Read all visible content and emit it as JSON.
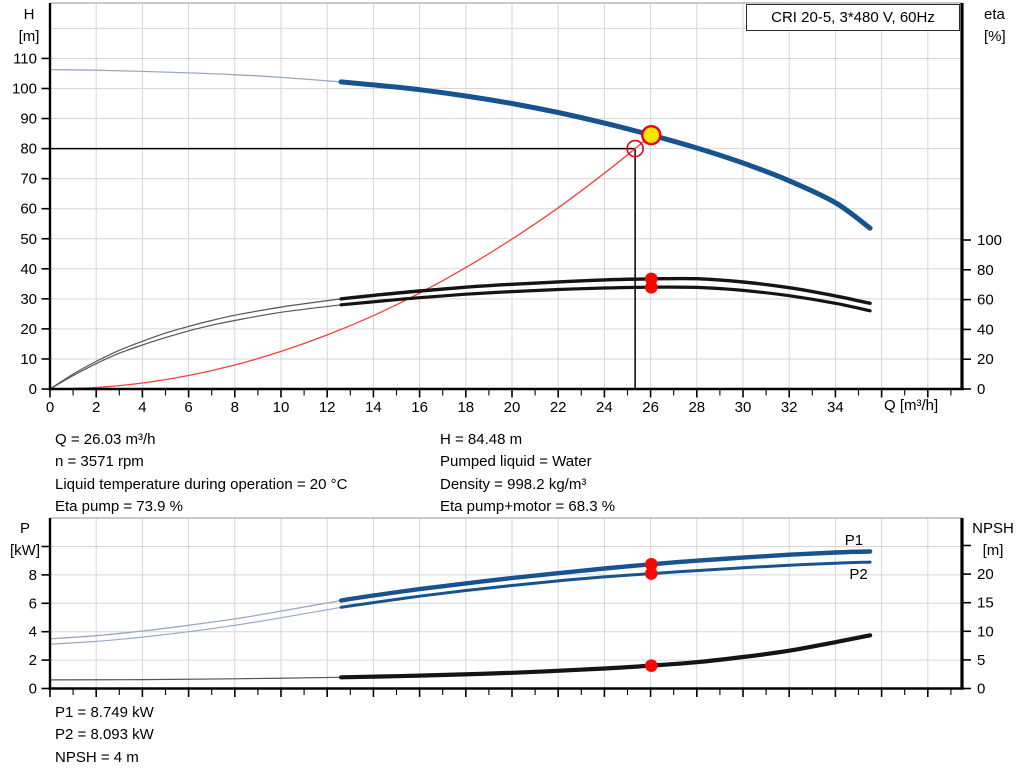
{
  "title_box": "CRI 20-5, 3*480 V, 60Hz",
  "colors": {
    "curve_blue": "#17538f",
    "curve_blue_thin": "#9aa9c2",
    "curve_black": "#141414",
    "curve_black_thin": "#555555",
    "curve_red": "#f0433d",
    "marker_red": "#f50800",
    "marker_yellow_fill": "#ffe600",
    "marker_yellow_stroke": "#e8001c",
    "grid": "#d6d6d6",
    "plot_border": "#ababab",
    "axis": "#000000"
  },
  "info_blocks": {
    "duty_left": [
      "Q = 26.03 m³/h",
      "n = 3571 rpm",
      "Liquid temperature during operation = 20 °C",
      "Eta pump = 73.9 %"
    ],
    "duty_right": [
      "H = 84.48 m",
      "Pumped liquid = Water",
      "Density = 998.2 kg/m³",
      "Eta pump+motor = 68.3 %"
    ],
    "power": [
      "P1 = 8.749 kW",
      "P2 = 8.093 kW",
      "NPSH = 4 m"
    ]
  },
  "chart_data": [
    {
      "type": "line",
      "x": {
        "label": "Q [m³/h]",
        "min": 0,
        "max": 39,
        "major_tick_step": 2,
        "tick_labels": [
          0,
          2,
          4,
          6,
          8,
          10,
          12,
          14,
          16,
          18,
          20,
          22,
          24,
          26,
          28,
          30,
          32,
          34
        ]
      },
      "y_left": {
        "title": [
          "H",
          "[m]"
        ],
        "min": 0,
        "max": 128,
        "ticks": [
          0,
          10,
          20,
          30,
          40,
          50,
          60,
          70,
          80,
          90,
          100,
          110
        ],
        "tick_labels": [
          0,
          10,
          20,
          30,
          40,
          50,
          60,
          70,
          80,
          90,
          100,
          110
        ]
      },
      "y_right": {
        "title": [
          "eta",
          "[%]"
        ],
        "min": 0,
        "max": 259,
        "ticks": [
          0,
          20,
          40,
          60,
          80,
          100
        ],
        "tick_labels": [
          0,
          20,
          40,
          60,
          80,
          100
        ]
      },
      "duty_lines": {
        "q": 25.33,
        "h": 80
      },
      "series": [
        {
          "name": "system-curve",
          "axis": "left",
          "thick_from": null,
          "points": [
            [
              0,
              0
            ],
            [
              2,
              0.5
            ],
            [
              4,
              2.0
            ],
            [
              6,
              4.5
            ],
            [
              8,
              8.0
            ],
            [
              10,
              12.5
            ],
            [
              12,
              18.0
            ],
            [
              14,
              24.4
            ],
            [
              16,
              31.9
            ],
            [
              18,
              40.4
            ],
            [
              20,
              49.9
            ],
            [
              22,
              60.3
            ],
            [
              24,
              71.8
            ],
            [
              25.33,
              80.0
            ],
            [
              26.03,
              84.48
            ]
          ]
        },
        {
          "name": "eta-pump",
          "axis": "right",
          "thick_from": 12.6,
          "points": [
            [
              0,
              0
            ],
            [
              1,
              10
            ],
            [
              2,
              18.5
            ],
            [
              3,
              26
            ],
            [
              4,
              32
            ],
            [
              5,
              37.5
            ],
            [
              6,
              42
            ],
            [
              7,
              46
            ],
            [
              8,
              49.5
            ],
            [
              10,
              55
            ],
            [
              12.6,
              60.5
            ],
            [
              14,
              62.8
            ],
            [
              16,
              65.8
            ],
            [
              18,
              68.3
            ],
            [
              20,
              70.3
            ],
            [
              22,
              71.9
            ],
            [
              24,
              73.2
            ],
            [
              26.03,
              73.9
            ],
            [
              28,
              74.0
            ],
            [
              30,
              71.8
            ],
            [
              32,
              68.0
            ],
            [
              34,
              62.5
            ],
            [
              35.5,
              57.5
            ]
          ]
        },
        {
          "name": "eta-pump-motor",
          "axis": "right",
          "thick_from": 12.6,
          "points": [
            [
              0,
              0
            ],
            [
              1,
              9
            ],
            [
              2,
              17
            ],
            [
              3,
              24
            ],
            [
              4,
              29.5
            ],
            [
              5,
              34.5
            ],
            [
              6,
              39
            ],
            [
              7,
              42.8
            ],
            [
              8,
              46
            ],
            [
              10,
              51.5
            ],
            [
              12.6,
              56.5
            ],
            [
              14,
              58.5
            ],
            [
              16,
              61.3
            ],
            [
              18,
              63.6
            ],
            [
              20,
              65.4
            ],
            [
              22,
              66.8
            ],
            [
              24,
              67.8
            ],
            [
              26.03,
              68.3
            ],
            [
              28,
              68.2
            ],
            [
              30,
              66.2
            ],
            [
              32,
              62.6
            ],
            [
              34,
              57.5
            ],
            [
              35.5,
              52.5
            ]
          ]
        },
        {
          "name": "head",
          "axis": "left",
          "thick_from": 12.6,
          "points": [
            [
              0,
              106.3
            ],
            [
              2,
              106.1
            ],
            [
              4,
              105.7
            ],
            [
              6,
              105.2
            ],
            [
              8,
              104.6
            ],
            [
              10,
              103.7
            ],
            [
              12.6,
              102.2
            ],
            [
              14,
              101.2
            ],
            [
              16,
              99.6
            ],
            [
              18,
              97.5
            ],
            [
              20,
              95.0
            ],
            [
              22,
              92.0
            ],
            [
              24,
              88.5
            ],
            [
              26.03,
              84.48
            ],
            [
              28,
              80.2
            ],
            [
              30,
              75.2
            ],
            [
              32,
              69.3
            ],
            [
              34,
              62.0
            ],
            [
              35.5,
              53.5
            ]
          ]
        }
      ],
      "markers": [
        {
          "type": "result-dot",
          "axis": "right",
          "q": 26.03,
          "v": 73.9
        },
        {
          "type": "result-dot",
          "axis": "right",
          "q": 26.03,
          "v": 68.3
        },
        {
          "type": "requested-duty-open",
          "axis": "left",
          "q": 25.33,
          "v": 80
        },
        {
          "type": "duty-point-yellow",
          "axis": "left",
          "q": 26.03,
          "v": 84.48
        }
      ],
      "series_labels": []
    },
    {
      "type": "line",
      "x": {
        "label": "",
        "min": 0,
        "max": 39,
        "major_tick_step": 2,
        "tick_labels": []
      },
      "y_left": {
        "title": [
          "P",
          "[kW]"
        ],
        "min": 0,
        "max": 12,
        "ticks": [
          0,
          2,
          4,
          6,
          8,
          10
        ],
        "tick_labels": [
          0,
          2,
          4,
          6,
          8
        ]
      },
      "y_right": {
        "title": [
          "NPSH",
          "[m]"
        ],
        "min": 0,
        "max": 29.8,
        "ticks": [
          0,
          5,
          10,
          15,
          20,
          25
        ],
        "tick_labels": [
          0,
          5,
          10,
          15,
          20
        ]
      },
      "series": [
        {
          "name": "p1",
          "axis": "left",
          "thick_from": 12.6,
          "points": [
            [
              0,
              3.5
            ],
            [
              2,
              3.72
            ],
            [
              4,
              4.05
            ],
            [
              6,
              4.45
            ],
            [
              8,
              4.9
            ],
            [
              10,
              5.45
            ],
            [
              12.6,
              6.2
            ],
            [
              14,
              6.55
            ],
            [
              16,
              7.0
            ],
            [
              18,
              7.4
            ],
            [
              20,
              7.78
            ],
            [
              22,
              8.12
            ],
            [
              24,
              8.45
            ],
            [
              26.03,
              8.749
            ],
            [
              28,
              9.0
            ],
            [
              30,
              9.22
            ],
            [
              32,
              9.42
            ],
            [
              34,
              9.58
            ],
            [
              35.5,
              9.65
            ]
          ]
        },
        {
          "name": "p2",
          "axis": "left",
          "thick_from": 12.6,
          "points": [
            [
              0,
              3.12
            ],
            [
              2,
              3.32
            ],
            [
              4,
              3.62
            ],
            [
              6,
              4.0
            ],
            [
              8,
              4.45
            ],
            [
              10,
              4.98
            ],
            [
              12.6,
              5.72
            ],
            [
              14,
              6.05
            ],
            [
              16,
              6.5
            ],
            [
              18,
              6.9
            ],
            [
              20,
              7.25
            ],
            [
              22,
              7.58
            ],
            [
              24,
              7.86
            ],
            [
              26.03,
              8.093
            ],
            [
              28,
              8.3
            ],
            [
              30,
              8.5
            ],
            [
              32,
              8.68
            ],
            [
              34,
              8.82
            ],
            [
              35.5,
              8.9
            ]
          ]
        },
        {
          "name": "npsh",
          "axis": "right",
          "thick_from": 12.6,
          "points": [
            [
              0,
              1.5
            ],
            [
              4,
              1.55
            ],
            [
              8,
              1.7
            ],
            [
              12.6,
              1.95
            ],
            [
              16,
              2.25
            ],
            [
              20,
              2.75
            ],
            [
              24,
              3.5
            ],
            [
              26.03,
              4.0
            ],
            [
              28,
              4.6
            ],
            [
              30,
              5.5
            ],
            [
              32,
              6.6
            ],
            [
              34,
              8.1
            ],
            [
              35.5,
              9.3
            ]
          ]
        }
      ],
      "markers": [
        {
          "type": "result-dot",
          "axis": "left",
          "q": 26.03,
          "v": 8.749
        },
        {
          "type": "result-dot",
          "axis": "left",
          "q": 26.03,
          "v": 8.093
        },
        {
          "type": "result-dot",
          "axis": "right",
          "q": 26.03,
          "v": 4
        }
      ],
      "series_labels": [
        {
          "text": "P1",
          "axis": "left",
          "q": 34.8,
          "v": 10.45
        },
        {
          "text": "P2",
          "axis": "left",
          "q": 35.0,
          "v": 8.05
        }
      ]
    }
  ]
}
